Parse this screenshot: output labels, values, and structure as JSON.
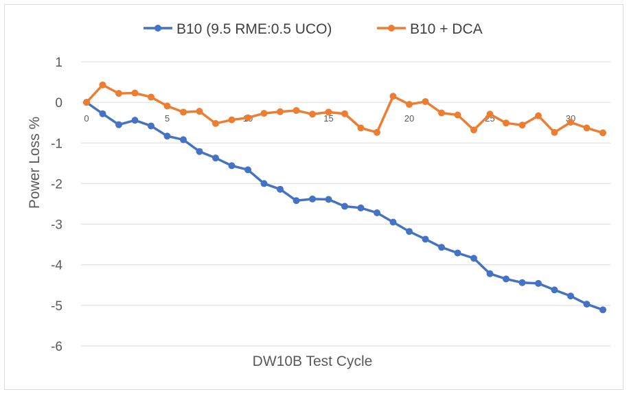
{
  "chart_data": {
    "type": "line",
    "title": "",
    "xlabel": "DW10B Test Cycle",
    "ylabel": "Power Loss %",
    "ylim": [
      -6,
      1
    ],
    "yticks": [
      1,
      0,
      -1,
      -2,
      -3,
      -4,
      -5,
      -6
    ],
    "xlim": [
      0,
      32
    ],
    "xticks": [
      0,
      5,
      10,
      15,
      20,
      25,
      30
    ],
    "grid": true,
    "legend_position": "top",
    "x": [
      0,
      1,
      2,
      3,
      4,
      5,
      6,
      7,
      8,
      9,
      10,
      11,
      12,
      13,
      14,
      15,
      16,
      17,
      18,
      19,
      20,
      21,
      22,
      23,
      24,
      25,
      26,
      27,
      28,
      29,
      30,
      31,
      32
    ],
    "series": [
      {
        "name": "B10 (9.5 RME:0.5 UCO)",
        "color": "#4472C4",
        "values": [
          0,
          -0.28,
          -0.55,
          -0.44,
          -0.58,
          -0.83,
          -0.92,
          -1.21,
          -1.37,
          -1.56,
          -1.66,
          -2.0,
          -2.14,
          -2.42,
          -2.38,
          -2.39,
          -2.56,
          -2.6,
          -2.72,
          -2.95,
          -3.18,
          -3.37,
          -3.57,
          -3.71,
          -3.84,
          -4.22,
          -4.35,
          -4.44,
          -4.46,
          -4.62,
          -4.77,
          -4.97,
          -5.11
        ]
      },
      {
        "name": "B10 + DCA",
        "color": "#ED7D31",
        "values": [
          0,
          0.43,
          0.22,
          0.23,
          0.13,
          -0.09,
          -0.24,
          -0.22,
          -0.52,
          -0.43,
          -0.38,
          -0.27,
          -0.23,
          -0.2,
          -0.29,
          -0.24,
          -0.28,
          -0.63,
          -0.74,
          0.15,
          -0.05,
          0.02,
          -0.26,
          -0.31,
          -0.68,
          -0.29,
          -0.51,
          -0.56,
          -0.33,
          -0.74,
          -0.49,
          -0.63,
          -0.75
        ]
      }
    ]
  }
}
